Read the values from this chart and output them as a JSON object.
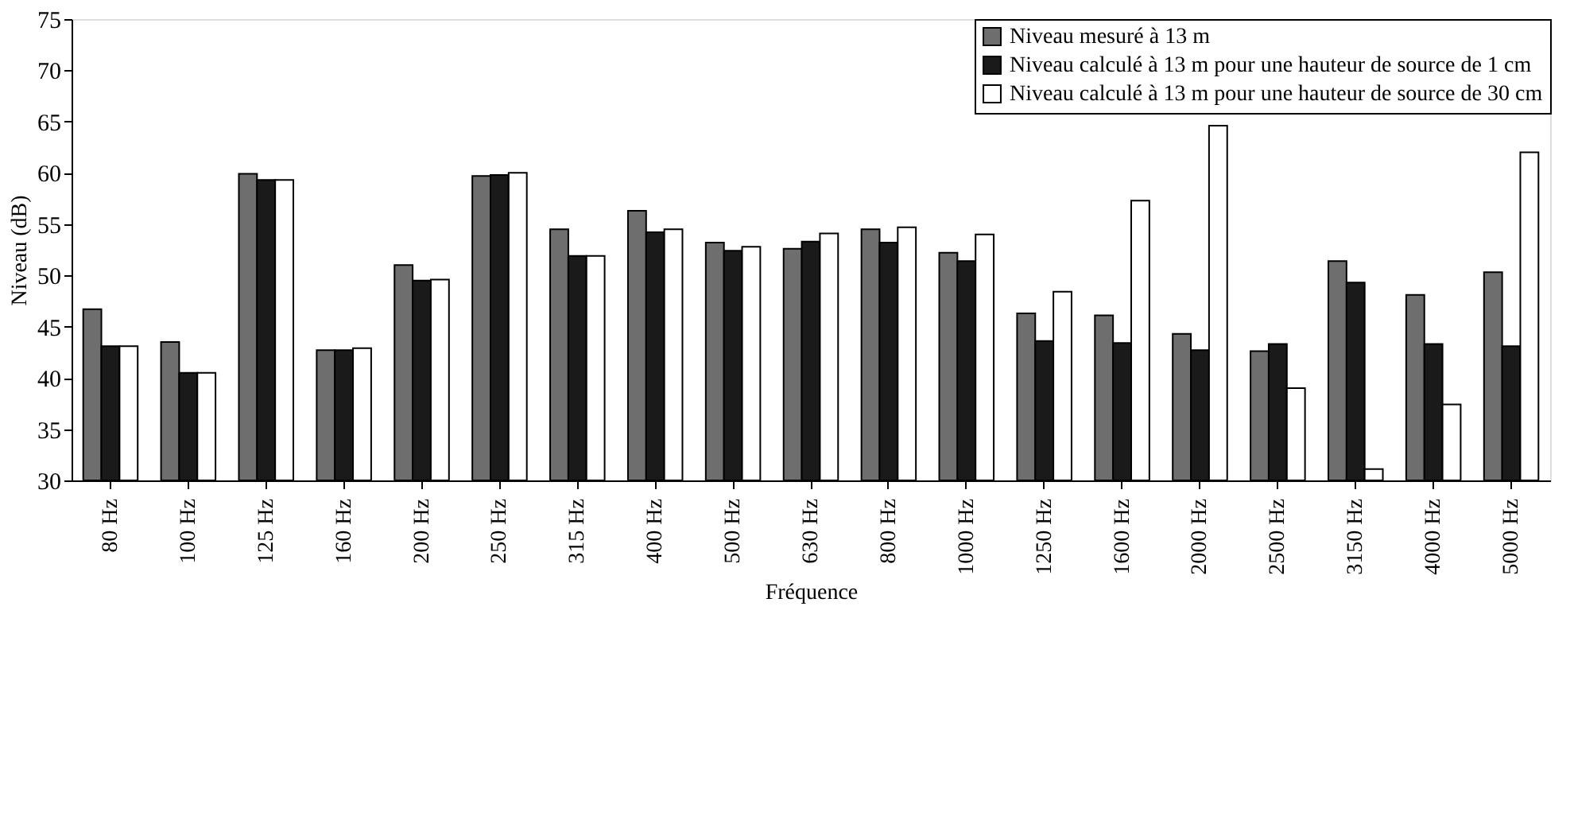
{
  "chart_data": {
    "type": "bar",
    "xlabel": "Fréquence",
    "ylabel": "Niveau (dB)",
    "categories": [
      "80 Hz",
      "100 Hz",
      "125 Hz",
      "160 Hz",
      "200 Hz",
      "250 Hz",
      "315 Hz",
      "400 Hz",
      "500 Hz",
      "630 Hz",
      "800 Hz",
      "1000 Hz",
      "1250 Hz",
      "1600 Hz",
      "2000 Hz",
      "2500 Hz",
      "3150 Hz",
      "4000 Hz",
      "5000 Hz"
    ],
    "series": [
      {
        "name": "Niveau mesuré à 13 m",
        "color": "#6e6e6e",
        "values": [
          46.7,
          43.5,
          59.9,
          42.7,
          51.0,
          59.7,
          54.5,
          56.3,
          53.2,
          52.6,
          54.5,
          52.2,
          46.3,
          46.1,
          44.3,
          42.6,
          51.4,
          48.1,
          50.3
        ]
      },
      {
        "name": "Niveau calculé à 13 m pour une hauteur de source de 1 cm",
        "color": "#1a1a1a",
        "values": [
          43.1,
          40.5,
          59.3,
          42.7,
          49.5,
          59.8,
          51.9,
          54.2,
          52.4,
          53.3,
          53.2,
          51.4,
          43.6,
          43.4,
          42.7,
          43.3,
          49.3,
          43.3,
          43.1
        ]
      },
      {
        "name": "Niveau calculé à 13 m pour une hauteur de source de 30 cm",
        "color": "#ffffff",
        "values": [
          43.1,
          40.5,
          59.3,
          42.9,
          49.6,
          60.0,
          51.9,
          54.5,
          52.8,
          54.1,
          54.7,
          54.0,
          48.4,
          57.3,
          64.6,
          39.0,
          31.1,
          37.4,
          62.0
        ]
      }
    ],
    "ylim": [
      30,
      75
    ],
    "yticks": [
      30,
      35,
      40,
      45,
      50,
      55,
      60,
      65,
      70,
      75
    ],
    "grid": false,
    "legend": "top right"
  }
}
